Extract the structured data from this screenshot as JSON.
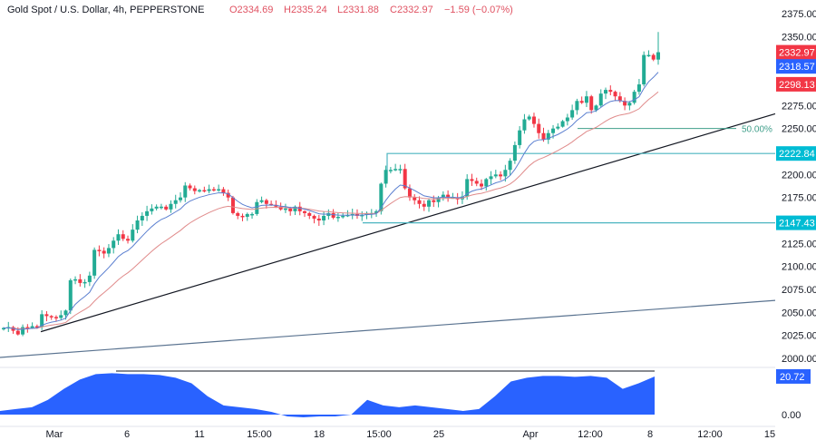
{
  "header": {
    "symbol": "Gold Spot / U.S. Dollar, 4h, PEPPERSTONE",
    "open": "O2334.69",
    "high": "H2335.24",
    "low": "L2331.88",
    "close": "C2332.97",
    "change": "−1.59 (−0.07%)"
  },
  "colors": {
    "up": "#22ab94",
    "down": "#f23645",
    "ema_fast": "#5b7fd0",
    "ema_slow": "#e08b8b",
    "level_line": "#4cb5c0",
    "level_tag": "#00bcd4",
    "trendline": "#131722",
    "channel_line": "#5a7390",
    "oscillator_fill": "#2962ff"
  },
  "chart_data": [
    {
      "type": "candlestick",
      "title": "Gold Spot / U.S. Dollar, 4h, PEPPERSTONE",
      "ylim": [
        2000,
        2375
      ],
      "y_ticks": [
        "2375.00",
        "2350.00",
        "2275.00",
        "2250.00",
        "2200.00",
        "2175.00",
        "2125.00",
        "2100.00",
        "2075.00",
        "2050.00",
        "2025.00",
        "2000.00"
      ],
      "x_ticks": [
        "Mar",
        "6",
        "11",
        "15:00",
        "18",
        "15:00",
        "25",
        "Apr",
        "12:00",
        "8",
        "12:00",
        "15"
      ],
      "closes": [
        2033,
        2034,
        2030,
        2026,
        2034,
        2033,
        2035,
        2034,
        2048,
        2046,
        2045,
        2044,
        2047,
        2052,
        2085,
        2086,
        2082,
        2083,
        2090,
        2118,
        2117,
        2114,
        2120,
        2128,
        2135,
        2130,
        2128,
        2140,
        2150,
        2155,
        2160,
        2163,
        2165,
        2165,
        2162,
        2168,
        2172,
        2175,
        2188,
        2185,
        2182,
        2183,
        2182,
        2184,
        2183,
        2184,
        2180,
        2175,
        2158,
        2155,
        2154,
        2157,
        2157,
        2170,
        2172,
        2168,
        2167,
        2165,
        2162,
        2163,
        2160,
        2165,
        2160,
        2158,
        2155,
        2152,
        2150,
        2155,
        2158,
        2153,
        2154,
        2155,
        2156,
        2157,
        2155,
        2156,
        2158,
        2158,
        2160,
        2190,
        2205,
        2205,
        2206,
        2206,
        2185,
        2175,
        2172,
        2168,
        2165,
        2172,
        2170,
        2175,
        2178,
        2175,
        2175,
        2173,
        2176,
        2195,
        2193,
        2190,
        2187,
        2195,
        2198,
        2200,
        2198,
        2205,
        2215,
        2232,
        2248,
        2260,
        2263,
        2255,
        2245,
        2238,
        2245,
        2250,
        2252,
        2258,
        2262,
        2270,
        2280,
        2278,
        2285,
        2270,
        2275,
        2288,
        2292,
        2290,
        2285,
        2280,
        2275,
        2278,
        2290,
        2298,
        2330,
        2330,
        2325,
        2333
      ],
      "last_high": 2355,
      "price_tags": [
        {
          "label": "2332.97",
          "value": 2332.97,
          "color": "#f23645"
        },
        {
          "label": "2318.57",
          "value": 2318.57,
          "color": "#2962ff"
        },
        {
          "label": "2298.13",
          "value": 2298.13,
          "color": "#f23645"
        }
      ],
      "levels": [
        {
          "label": "2222.84",
          "value": 2222.84
        },
        {
          "label": "2147.43",
          "value": 2147.43
        }
      ],
      "fib": {
        "label": "50.00%",
        "value": 2250
      },
      "trendlines": [
        {
          "from": 2029,
          "to": 2266
        },
        {
          "from": 2001,
          "to": 2063
        }
      ]
    },
    {
      "type": "area",
      "y_ticks": [
        "0.00"
      ],
      "last_value_label": "20.72",
      "values": [
        2,
        3,
        4,
        8,
        14,
        19,
        22,
        22.5,
        22,
        22,
        21.5,
        20,
        17,
        10,
        5,
        4,
        3,
        1.5,
        -1,
        -1.5,
        -1,
        -1,
        0,
        8,
        5,
        4,
        5,
        4,
        3,
        2,
        3,
        10,
        18,
        20,
        21,
        21,
        20.5,
        21,
        20,
        14,
        17,
        20.72
      ]
    }
  ]
}
